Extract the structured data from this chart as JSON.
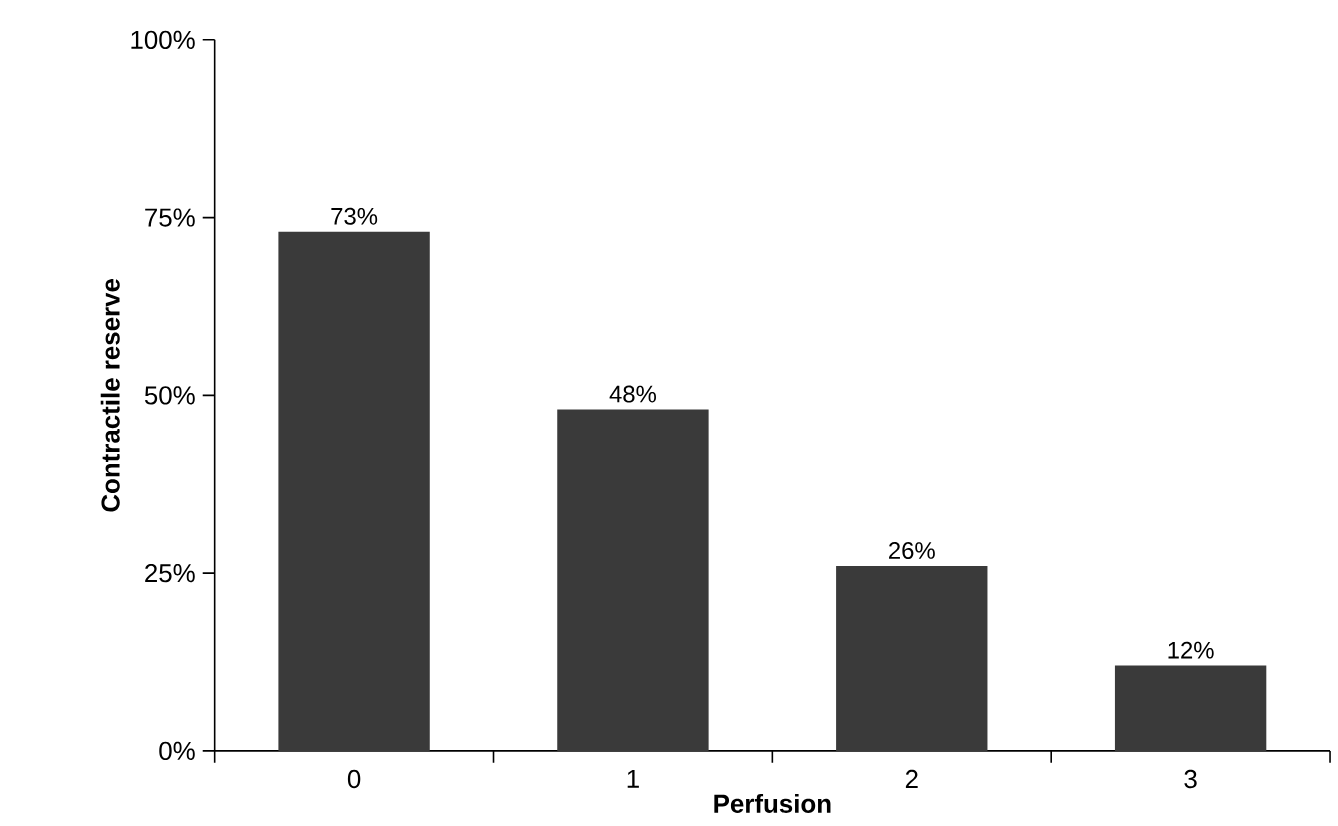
{
  "chart_data": {
    "type": "bar",
    "xlabel": "Perfusion",
    "ylabel": "Contractile reserve",
    "categories": [
      "0",
      "1",
      "2",
      "3"
    ],
    "values": [
      73,
      48,
      26,
      12
    ],
    "value_labels": [
      "73%",
      "48%",
      "26%",
      "12%"
    ],
    "color": "#3a3a3a",
    "ylim": [
      0,
      100
    ],
    "yticks": [
      {
        "value": 0,
        "label": "0%"
      },
      {
        "value": 25,
        "label": "25%"
      },
      {
        "value": 50,
        "label": "50%"
      },
      {
        "value": 75,
        "label": "75%"
      },
      {
        "value": 100,
        "label": "100%"
      }
    ],
    "grid": false
  }
}
